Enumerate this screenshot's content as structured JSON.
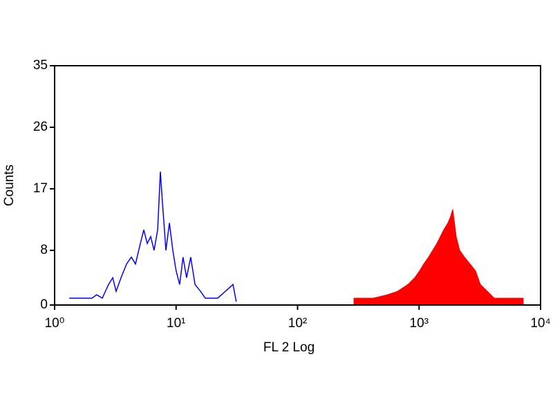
{
  "chart_data": {
    "type": "histogram",
    "xlabel": "FL 2 Log",
    "ylabel": "Counts",
    "xscale": "log",
    "xlim": [
      1,
      10000
    ],
    "ylim": [
      0,
      35
    ],
    "xticks": [
      {
        "value": 1,
        "label": "10⁰"
      },
      {
        "value": 10,
        "label": "10¹"
      },
      {
        "value": 100,
        "label": "10²"
      },
      {
        "value": 1000,
        "label": "10³"
      },
      {
        "value": 10000,
        "label": "10⁴"
      }
    ],
    "yticks": [
      0,
      8,
      17,
      26,
      35
    ],
    "series": [
      {
        "color": "#0000ff",
        "fill": false,
        "x": [
          1.32,
          1.78,
          2.03,
          2.22,
          2.47,
          2.78,
          3.01,
          3.21,
          3.52,
          3.91,
          4.28,
          4.63,
          5.08,
          5.42,
          5.79,
          6.18,
          6.59,
          7.05,
          7.42,
          7.72,
          8.24,
          8.81,
          9.4,
          10.0,
          10.7,
          11.4,
          12.2,
          13.2,
          14.3,
          15.9,
          17.4,
          19.3,
          22.0,
          29.4,
          31.3
        ],
        "values": [
          1,
          1,
          1,
          1.5,
          1,
          3,
          4,
          2,
          4,
          6,
          7,
          6,
          9,
          11,
          9,
          10,
          8,
          11,
          19.5,
          15,
          8,
          12,
          8,
          5,
          3,
          7,
          4,
          7,
          3,
          2,
          1,
          1,
          1,
          3,
          0.5
        ]
      },
      {
        "color": "#ff0000",
        "fill": true,
        "x": [
          291,
          420,
          546,
          664,
          809,
          921,
          1010,
          1092,
          1197,
          1295,
          1402,
          1496,
          1596,
          1727,
          1820,
          1893,
          2021,
          2158,
          2366,
          2628,
          2920,
          3200,
          3650,
          4156,
          4740,
          7210
        ],
        "values": [
          1,
          1,
          1.5,
          2,
          3,
          4,
          5,
          6,
          7,
          8,
          9,
          10,
          11,
          12,
          13,
          14,
          10,
          8,
          7,
          6,
          5,
          3,
          2,
          1,
          1,
          1
        ]
      }
    ]
  }
}
